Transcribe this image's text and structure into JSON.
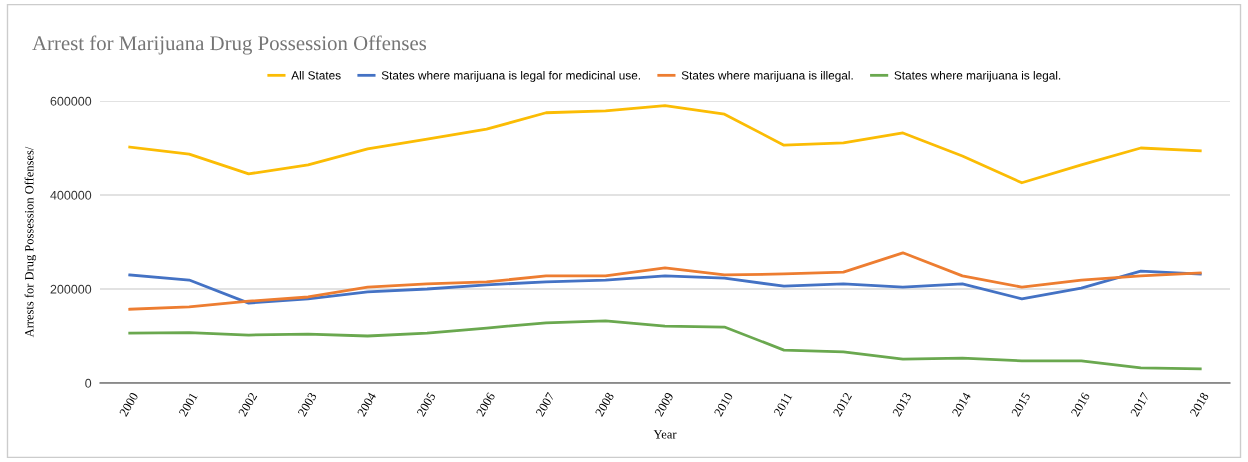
{
  "chart_data": {
    "type": "line",
    "title": "Arrest for Marijuana Drug Possession Offenses",
    "xlabel": "Year",
    "ylabel": "Arrests for Drug Possession Offenses/",
    "categories": [
      "2000",
      "2001",
      "2002",
      "2003",
      "2004",
      "2005",
      "2006",
      "2007",
      "2008",
      "2009",
      "2010",
      "2011",
      "2012",
      "2013",
      "2014",
      "2015",
      "2016",
      "2017",
      "2018"
    ],
    "series": [
      {
        "name": "All States",
        "color": "#fbbc04",
        "values": [
          502000,
          487000,
          445000,
          464000,
          498000,
          519000,
          540000,
          575000,
          579000,
          590000,
          572000,
          506000,
          511000,
          532000,
          483000,
          426000,
          464000,
          500000,
          494000
        ]
      },
      {
        "name": "States where marijuana is legal for medicinal use.",
        "color": "#4472c4",
        "values": [
          230000,
          219000,
          170000,
          179000,
          194000,
          200000,
          209000,
          215000,
          219000,
          228000,
          223000,
          206000,
          211000,
          204000,
          211000,
          179000,
          202000,
          238000,
          232000
        ]
      },
      {
        "name": "States where marijuana is illegal.",
        "color": "#ed7d31",
        "values": [
          157000,
          162000,
          174000,
          183000,
          204000,
          211000,
          215000,
          228000,
          228000,
          245000,
          230000,
          232000,
          236000,
          277000,
          228000,
          204000,
          219000,
          228000,
          234000
        ]
      },
      {
        "name": "States where marijuana is legal.",
        "color": "#6aa84f",
        "values": [
          106000,
          107000,
          102000,
          104000,
          100000,
          106000,
          117000,
          128000,
          132000,
          121000,
          119000,
          70000,
          66000,
          51000,
          53000,
          47000,
          47000,
          32000,
          30000
        ]
      }
    ],
    "ylim": [
      0,
      600000
    ],
    "yticks": [
      0,
      200000,
      400000,
      600000
    ],
    "grid": "y",
    "legend": "top",
    "marker": "none",
    "line_style": "solid"
  }
}
